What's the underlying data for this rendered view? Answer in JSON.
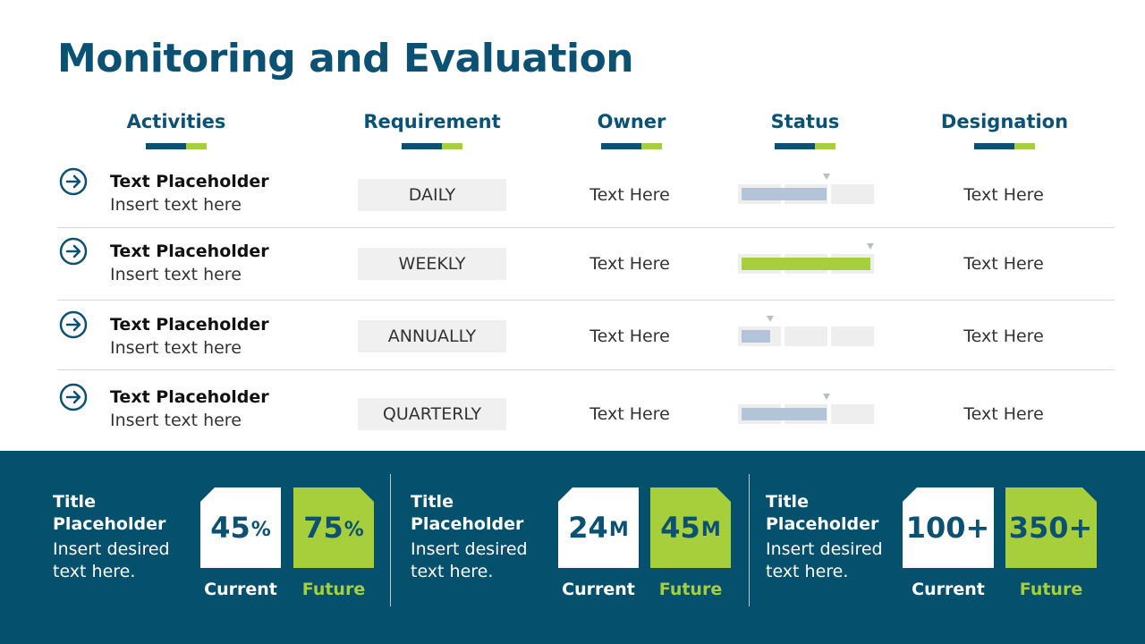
{
  "title": "Monitoring and Evaluation",
  "colors": {
    "accent_dark": "#0b5173",
    "accent_green": "#a6cf3b",
    "status_blue": "#b4c4d8",
    "footer_bg": "#04506d"
  },
  "headers": {
    "activities": "Activities",
    "requirement": "Requirement",
    "owner": "Owner",
    "status": "Status",
    "designation": "Designation"
  },
  "rows": [
    {
      "icon": "arrow-right-circle-icon",
      "title": "Text Placeholder",
      "subtitle": "Insert text here",
      "requirement": "DAILY",
      "owner": "Text Here",
      "status_fraction": 0.66,
      "status_color": "#b4c4d8",
      "designation": "Text Here"
    },
    {
      "icon": "arrow-right-circle-icon",
      "title": "Text Placeholder",
      "subtitle": "Insert text here",
      "requirement": "WEEKLY",
      "owner": "Text Here",
      "status_fraction": 1.0,
      "status_color": "#a6cf3b",
      "designation": "Text Here"
    },
    {
      "icon": "arrow-right-circle-icon",
      "title": "Text Placeholder",
      "subtitle": "Insert text here",
      "requirement": "ANNUALLY",
      "owner": "Text Here",
      "status_fraction": 0.22,
      "status_color": "#b4c4d8",
      "designation": "Text Here"
    },
    {
      "icon": "arrow-right-circle-icon",
      "title": "Text Placeholder",
      "subtitle": "Insert text here",
      "requirement": "QUARTERLY",
      "owner": "Text Here",
      "status_fraction": 0.66,
      "status_color": "#b4c4d8",
      "designation": "Text Here"
    }
  ],
  "kpis": [
    {
      "title": "Title Placeholder",
      "subtitle": "Insert desired text here.",
      "current_value": "45",
      "current_unit": "%",
      "future_value": "75",
      "future_unit": "%",
      "current_label": "Current",
      "future_label": "Future"
    },
    {
      "title": "Title Placeholder",
      "subtitle": "Insert desired text here.",
      "current_value": "24",
      "current_unit": "M",
      "future_value": "45",
      "future_unit": "M",
      "current_label": "Current",
      "future_label": "Future"
    },
    {
      "title": "Title Placeholder",
      "subtitle": "Insert desired text here.",
      "current_value": "100+",
      "current_unit": "",
      "future_value": "350+",
      "future_unit": "",
      "current_label": "Current",
      "future_label": "Future"
    }
  ]
}
